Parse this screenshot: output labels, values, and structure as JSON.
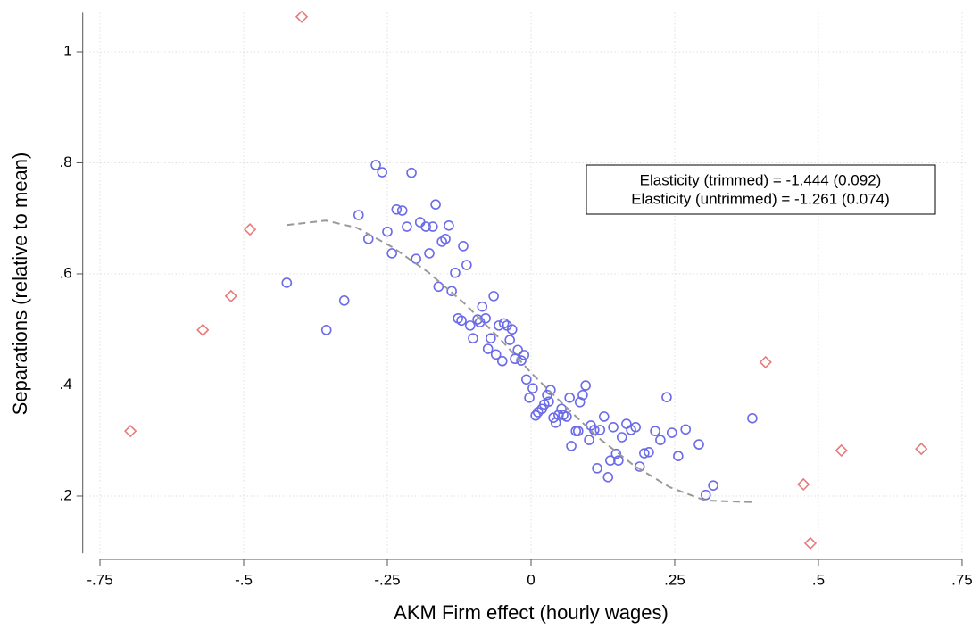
{
  "chart_data": {
    "type": "scatter",
    "xlabel": "AKM Firm effect (hourly wages)",
    "ylabel": "Separations (relative to mean)",
    "annotations": [
      "Elasticity (trimmed) =  -1.444 (0.092)",
      "Elasticity (untrimmed) =  -1.261 (0.074)"
    ],
    "xlim": [
      -0.78,
      0.76
    ],
    "ylim": [
      0.097,
      1.07
    ],
    "xticks": [
      {
        "value": -0.75,
        "label": "-.75"
      },
      {
        "value": -0.5,
        "label": "-.5"
      },
      {
        "value": -0.25,
        "label": "-.25"
      },
      0,
      {
        "value": 0.25,
        "label": ".25"
      },
      {
        "value": 0.5,
        "label": ".5"
      },
      {
        "value": 0.75,
        "label": ".75"
      }
    ],
    "yticks": [
      {
        "value": 0.2,
        "label": ".2"
      },
      {
        "value": 0.4,
        "label": ".4"
      },
      {
        "value": 0.6,
        "label": ".6"
      },
      {
        "value": 0.8,
        "label": ".8"
      },
      1
    ],
    "grid": true,
    "series": [
      {
        "color": "#6b6bea",
        "marker": "circle",
        "x": [
          -0.425,
          -0.356,
          -0.325,
          -0.3,
          -0.283,
          -0.27,
          -0.259,
          -0.25,
          -0.242,
          -0.234,
          -0.224,
          -0.216,
          -0.208,
          -0.2,
          -0.193,
          -0.183,
          -0.177,
          -0.171,
          -0.166,
          -0.161,
          -0.155,
          -0.149,
          -0.143,
          -0.138,
          -0.132,
          -0.127,
          -0.121,
          -0.118,
          -0.112,
          -0.106,
          -0.101,
          -0.093,
          -0.089,
          -0.085,
          -0.079,
          -0.075,
          -0.07,
          -0.065,
          -0.061,
          -0.056,
          -0.05,
          -0.047,
          -0.042,
          -0.037,
          -0.033,
          -0.028,
          -0.023,
          -0.017,
          -0.012,
          -0.008,
          -0.003,
          0.003,
          0.008,
          0.012,
          0.019,
          0.023,
          0.028,
          0.031,
          0.034,
          0.039,
          0.043,
          0.048,
          0.053,
          0.056,
          0.062,
          0.067,
          0.07,
          0.078,
          0.082,
          0.085,
          0.09,
          0.095,
          0.101,
          0.104,
          0.11,
          0.115,
          0.12,
          0.127,
          0.134,
          0.138,
          0.143,
          0.148,
          0.152,
          0.158,
          0.166,
          0.174,
          0.182,
          0.189,
          0.197,
          0.205,
          0.216,
          0.225,
          0.236,
          0.245,
          0.256,
          0.269,
          0.292,
          0.304,
          0.317,
          0.385
        ],
        "values": [
          0.584,
          0.499,
          0.552,
          0.706,
          0.663,
          0.796,
          0.783,
          0.676,
          0.637,
          0.716,
          0.714,
          0.685,
          0.782,
          0.627,
          0.693,
          0.685,
          0.637,
          0.685,
          0.725,
          0.577,
          0.658,
          0.663,
          0.687,
          0.569,
          0.602,
          0.52,
          0.516,
          0.65,
          0.616,
          0.507,
          0.484,
          0.518,
          0.513,
          0.541,
          0.52,
          0.465,
          0.484,
          0.56,
          0.455,
          0.507,
          0.443,
          0.511,
          0.507,
          0.481,
          0.5,
          0.447,
          0.463,
          0.444,
          0.454,
          0.41,
          0.377,
          0.394,
          0.345,
          0.351,
          0.357,
          0.365,
          0.382,
          0.37,
          0.391,
          0.341,
          0.332,
          0.346,
          0.357,
          0.346,
          0.343,
          0.377,
          0.29,
          0.317,
          0.317,
          0.369,
          0.382,
          0.399,
          0.301,
          0.327,
          0.319,
          0.25,
          0.319,
          0.343,
          0.234,
          0.264,
          0.324,
          0.276,
          0.264,
          0.306,
          0.33,
          0.319,
          0.324,
          0.253,
          0.277,
          0.279,
          0.317,
          0.301,
          0.378,
          0.314,
          0.272,
          0.32,
          0.293,
          0.202,
          0.219,
          0.34
        ]
      },
      {
        "color": "#e87a7a",
        "marker": "diamond",
        "x": [
          -0.697,
          -0.571,
          -0.522,
          -0.489,
          -0.399,
          0.408,
          0.474,
          0.486,
          0.54,
          0.679
        ],
        "values": [
          0.317,
          0.499,
          0.56,
          0.68,
          1.063,
          0.441,
          0.221,
          0.115,
          0.282,
          0.285
        ]
      },
      {
        "color": "#999999",
        "marker": "line",
        "style": "dashed",
        "x": [
          -0.425,
          -0.357,
          -0.303,
          -0.241,
          -0.179,
          -0.116,
          -0.054,
          0,
          0.054,
          0.116,
          0.179,
          0.241,
          0.303,
          0.385
        ],
        "values": [
          0.688,
          0.696,
          0.683,
          0.648,
          0.603,
          0.547,
          0.483,
          0.422,
          0.367,
          0.306,
          0.255,
          0.216,
          0.192,
          0.189
        ]
      }
    ]
  }
}
